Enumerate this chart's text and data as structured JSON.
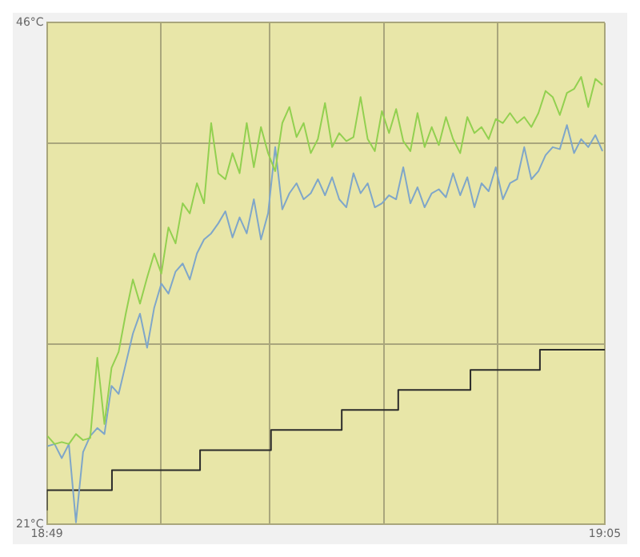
{
  "chart_data": {
    "type": "line",
    "x": [
      18.817,
      18.8204,
      18.8238,
      18.8272,
      18.8306,
      18.834,
      18.8374,
      18.8408,
      18.8442,
      18.8476,
      18.851,
      18.8544,
      18.8578,
      18.8612,
      18.8646,
      18.868,
      18.8714,
      18.8748,
      18.8782,
      18.8816,
      18.885,
      18.8884,
      18.8918,
      18.8952,
      18.8986,
      18.902,
      18.9054,
      18.9088,
      18.9122,
      18.9156,
      18.919,
      18.9224,
      18.9258,
      18.9292,
      18.9326,
      18.936,
      18.9394,
      18.9428,
      18.9462,
      18.9496,
      18.953,
      18.9564,
      18.9598,
      18.9632,
      18.9666,
      18.97,
      18.9734,
      18.9768,
      18.9802,
      18.9836,
      18.987,
      18.9904,
      18.9938,
      18.9972,
      19.0006,
      19.004,
      19.0074,
      19.0108,
      19.0142,
      19.0176,
      19.021,
      19.0244,
      19.0278,
      19.0312,
      19.0346,
      19.038,
      19.0414,
      19.0448,
      19.0482,
      19.0516,
      19.055,
      19.0584,
      19.0618,
      19.0652,
      19.0686,
      19.072,
      19.0754,
      19.0788,
      19.0822
    ],
    "xlim": [
      18.8167,
      19.0833
    ],
    "xticks": [
      {
        "value": 18.8167,
        "label": "18:49"
      },
      {
        "value": 18.8713,
        "label": null
      },
      {
        "value": 18.9231,
        "label": null
      },
      {
        "value": 18.9777,
        "label": null
      },
      {
        "value": 19.0322,
        "label": null
      },
      {
        "value": 19.0833,
        "label": "19:05"
      }
    ],
    "ylim": [
      21,
      46
    ],
    "yticks": [
      {
        "value": 21,
        "label": "21°C"
      },
      {
        "value": 30,
        "label": null
      },
      {
        "value": 40,
        "label": null
      },
      {
        "value": 46,
        "label": "46°C"
      }
    ],
    "grid": true,
    "legend": false,
    "marker": "none",
    "line_style": "solid",
    "series": [
      {
        "color": "#92d050",
        "values": [
          25.4,
          25,
          25.1,
          25,
          25.5,
          25.2,
          25.3,
          29.3,
          26,
          28.8,
          29.6,
          31.5,
          33.2,
          32,
          33.3,
          34.5,
          33.5,
          35.8,
          35,
          37,
          36.5,
          38,
          37,
          41,
          38.5,
          38.2,
          39.5,
          38.5,
          41,
          38.8,
          40.8,
          39.5,
          38.6,
          41,
          41.8,
          40.3,
          41,
          39.5,
          40.2,
          42,
          39.8,
          40.5,
          40.1,
          40.3,
          42.3,
          40.2,
          39.6,
          41.6,
          40.5,
          41.7,
          40.1,
          39.6,
          41.5,
          39.8,
          40.8,
          39.9,
          41.3,
          40.2,
          39.5,
          41.3,
          40.5,
          40.8,
          40.2,
          41.2,
          41,
          41.5,
          41,
          41.3,
          40.8,
          41.5,
          42.6,
          42.3,
          41.4,
          42.5,
          42.7,
          43.3,
          41.8,
          43.2,
          42.9
        ]
      },
      {
        "color": "#7fa6c9",
        "values": [
          24.9,
          25,
          24.3,
          25,
          21.1,
          24.6,
          25.4,
          25.8,
          25.5,
          27.9,
          27.5,
          29,
          30.5,
          31.5,
          29.8,
          31.8,
          33,
          32.5,
          33.6,
          34,
          33.2,
          34.5,
          35.2,
          35.5,
          36,
          36.6,
          35.3,
          36.3,
          35.5,
          37.2,
          35.2,
          36.5,
          39.8,
          36.7,
          37.5,
          38,
          37.2,
          37.5,
          38.2,
          37.4,
          38.3,
          37.2,
          36.8,
          38.5,
          37.5,
          38,
          36.8,
          37,
          37.4,
          37.2,
          38.8,
          37,
          37.8,
          36.8,
          37.5,
          37.7,
          37.3,
          38.5,
          37.4,
          38.3,
          36.8,
          38,
          37.6,
          38.8,
          37.2,
          38,
          38.2,
          39.8,
          38.2,
          38.6,
          39.4,
          39.8,
          39.7,
          40.9,
          39.5,
          40.2,
          39.8,
          40.4,
          39.6
        ]
      },
      {
        "type": "step",
        "color": "#2b2b2b",
        "x": [
          18.8167,
          18.8478,
          18.8899,
          18.9238,
          18.9576,
          18.9846,
          19.0191,
          19.0523,
          19.0799,
          19.0833
        ],
        "values": [
          21.7,
          22.7,
          23.7,
          24.7,
          25.7,
          26.7,
          27.7,
          28.7,
          29.7,
          29.7
        ]
      }
    ]
  }
}
